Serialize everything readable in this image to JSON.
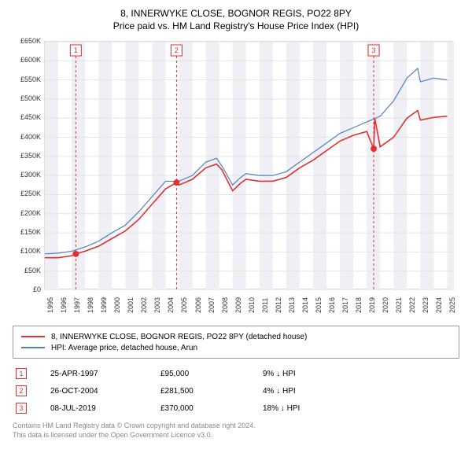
{
  "title": "8, INNERWYKE CLOSE, BOGNOR REGIS, PO22 8PY",
  "subtitle": "Price paid vs. HM Land Registry's House Price Index (HPI)",
  "chart": {
    "type": "line",
    "background_color": "#ffffff",
    "grid_color": "#e5e5e5",
    "band_color": "#efeff5",
    "x_min": 1995,
    "x_max": 2025.5,
    "y_min": 0,
    "y_max": 650000,
    "y_ticks": [
      0,
      50000,
      100000,
      150000,
      200000,
      250000,
      300000,
      350000,
      400000,
      450000,
      500000,
      550000,
      600000,
      650000
    ],
    "y_tick_labels": [
      "£0",
      "£50K",
      "£100K",
      "£150K",
      "£200K",
      "£250K",
      "£300K",
      "£350K",
      "£400K",
      "£450K",
      "£500K",
      "£550K",
      "£600K",
      "£650K"
    ],
    "x_ticks": [
      1995,
      1996,
      1997,
      1998,
      1999,
      2000,
      2001,
      2002,
      2003,
      2004,
      2005,
      2006,
      2007,
      2008,
      2009,
      2010,
      2011,
      2012,
      2013,
      2014,
      2015,
      2016,
      2017,
      2018,
      2019,
      2020,
      2021,
      2022,
      2023,
      2024,
      2025
    ],
    "series": [
      {
        "name": "8, INNERWYKE CLOSE, BOGNOR REGIS, PO22 8PY (detached house)",
        "color": "#e03030",
        "line_width": 1.6,
        "data": [
          [
            1995,
            85000
          ],
          [
            1996,
            85000
          ],
          [
            1997,
            90000
          ],
          [
            1997.31,
            95000
          ],
          [
            1998,
            102000
          ],
          [
            1999,
            115000
          ],
          [
            2000,
            135000
          ],
          [
            2001,
            155000
          ],
          [
            2002,
            185000
          ],
          [
            2003,
            225000
          ],
          [
            2004,
            265000
          ],
          [
            2004.82,
            281500
          ],
          [
            2005,
            275000
          ],
          [
            2006,
            290000
          ],
          [
            2007,
            320000
          ],
          [
            2007.8,
            330000
          ],
          [
            2008.2,
            315000
          ],
          [
            2009,
            260000
          ],
          [
            2009.6,
            280000
          ],
          [
            2010,
            290000
          ],
          [
            2011,
            285000
          ],
          [
            2012,
            285000
          ],
          [
            2013,
            295000
          ],
          [
            2014,
            320000
          ],
          [
            2015,
            340000
          ],
          [
            2016,
            365000
          ],
          [
            2017,
            390000
          ],
          [
            2018,
            405000
          ],
          [
            2019,
            415000
          ],
          [
            2019.52,
            370000
          ],
          [
            2019.6,
            450000
          ],
          [
            2020,
            375000
          ],
          [
            2021,
            400000
          ],
          [
            2022,
            450000
          ],
          [
            2022.8,
            470000
          ],
          [
            2023,
            445000
          ],
          [
            2024,
            452000
          ],
          [
            2025,
            455000
          ]
        ],
        "marker_points": [
          {
            "x": 1997.31,
            "y": 95000
          },
          {
            "x": 2004.82,
            "y": 281500
          },
          {
            "x": 2019.52,
            "y": 370000
          }
        ]
      },
      {
        "name": "HPI: Average price, detached house, Arun",
        "color": "#5080c0",
        "line_width": 1.2,
        "data": [
          [
            1995,
            95000
          ],
          [
            1996,
            97000
          ],
          [
            1997,
            102000
          ],
          [
            1998,
            113000
          ],
          [
            1999,
            128000
          ],
          [
            2000,
            150000
          ],
          [
            2001,
            170000
          ],
          [
            2002,
            205000
          ],
          [
            2003,
            245000
          ],
          [
            2004,
            285000
          ],
          [
            2005,
            285000
          ],
          [
            2006,
            300000
          ],
          [
            2007,
            335000
          ],
          [
            2007.8,
            345000
          ],
          [
            2008.2,
            325000
          ],
          [
            2009,
            275000
          ],
          [
            2009.6,
            295000
          ],
          [
            2010,
            305000
          ],
          [
            2011,
            300000
          ],
          [
            2012,
            300000
          ],
          [
            2013,
            310000
          ],
          [
            2014,
            335000
          ],
          [
            2015,
            360000
          ],
          [
            2016,
            385000
          ],
          [
            2017,
            410000
          ],
          [
            2018,
            425000
          ],
          [
            2019,
            440000
          ],
          [
            2020,
            455000
          ],
          [
            2021,
            495000
          ],
          [
            2022,
            555000
          ],
          [
            2022.8,
            580000
          ],
          [
            2023,
            545000
          ],
          [
            2024,
            555000
          ],
          [
            2025,
            550000
          ]
        ]
      }
    ],
    "marker_lines": [
      {
        "num": "1",
        "x": 1997.31,
        "color": "#e03030"
      },
      {
        "num": "2",
        "x": 2004.82,
        "color": "#e03030"
      },
      {
        "num": "3",
        "x": 2019.52,
        "color": "#e03030"
      }
    ]
  },
  "legend": {
    "items": [
      {
        "label": "8, INNERWYKE CLOSE, BOGNOR REGIS, PO22 8PY (detached house)",
        "color": "#e03030"
      },
      {
        "label": "HPI: Average price, detached house, Arun",
        "color": "#5080c0"
      }
    ]
  },
  "marker_table": [
    {
      "num": "1",
      "date": "25-APR-1997",
      "price": "£95,000",
      "hpi_delta": "9% ↓ HPI",
      "color": "#e03030"
    },
    {
      "num": "2",
      "date": "26-OCT-2004",
      "price": "£281,500",
      "hpi_delta": "4% ↓ HPI",
      "color": "#e03030"
    },
    {
      "num": "3",
      "date": "08-JUL-2019",
      "price": "£370,000",
      "hpi_delta": "18% ↓ HPI",
      "color": "#e03030"
    }
  ],
  "footer": {
    "line1": "Contains HM Land Registry data © Crown copyright and database right 2024.",
    "line2": "This data is licensed under the Open Government Licence v3.0."
  }
}
